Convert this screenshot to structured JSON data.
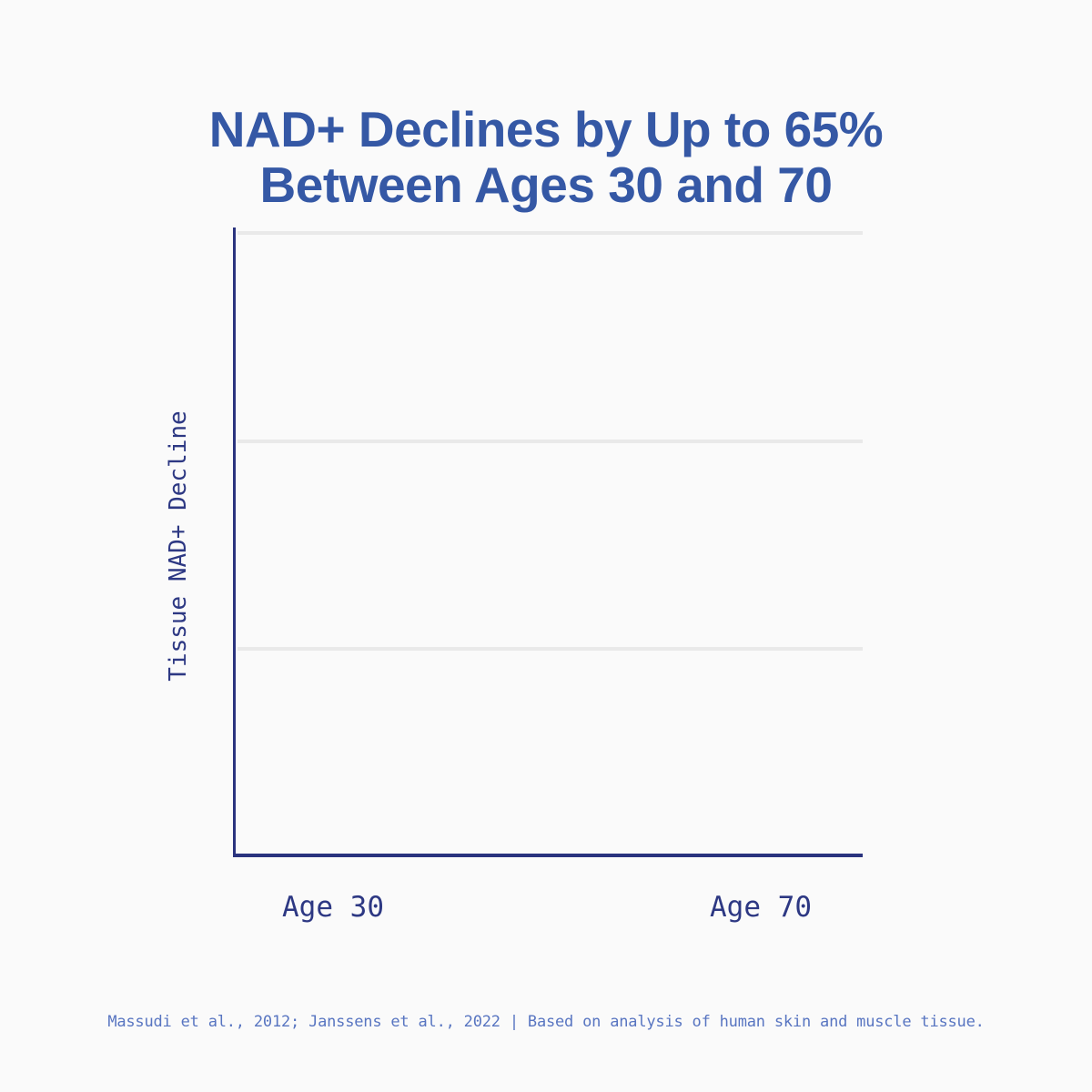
{
  "title": {
    "line1": "NAD+ Declines by Up to 65%",
    "line2": "Between Ages 30 and 70"
  },
  "footer": {
    "text": "Massudi et al., 2012; Janssens et al., 2022 | Based on analysis of human skin and muscle tissue."
  },
  "colors": {
    "background": "#fafafa",
    "title_blue": "#3558a5",
    "axis_navy": "#2a337e",
    "tick_label_navy": "#2d3883",
    "footer_blue": "#5875c1",
    "gridline_gray": "#e9e9e9"
  },
  "chart_data": {
    "type": "bar",
    "title": "NAD+ Declines by Up to 65% Between Ages 30 and 70",
    "categories": [
      "Age 30",
      "Age 70"
    ],
    "values": [],
    "series": [],
    "xlabel": "",
    "ylabel": "Tissue NAD+ Decline",
    "grid": true,
    "horizontal_gridline_count": 3,
    "legend": "none",
    "plot_state": "empty frame - axes and gridlines drawn, no bars or data marks rendered",
    "stated_decline_from_title_pct": 65
  }
}
